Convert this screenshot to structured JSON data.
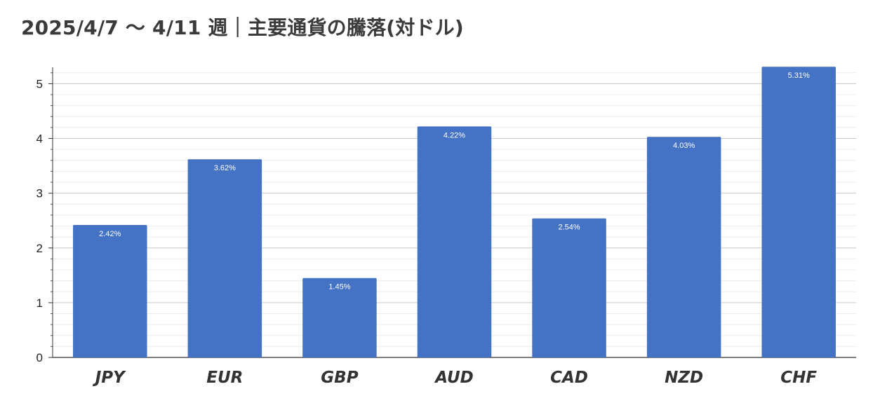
{
  "chart_data": {
    "type": "bar",
    "title": "2025/4/7 〜 4/11 週｜主要通貨の騰落(対ドル)",
    "categories": [
      "JPY",
      "EUR",
      "GBP",
      "AUD",
      "CAD",
      "NZD",
      "CHF"
    ],
    "series": [
      {
        "values": [
          2.42,
          3.62,
          1.45,
          4.22,
          2.54,
          4.03,
          5.31
        ],
        "data_labels": [
          "2.42%",
          "3.62%",
          "1.45%",
          "4.22%",
          "2.54%",
          "4.03%",
          "5.31%"
        ],
        "color": "#4472c4"
      }
    ],
    "xlabel": "",
    "ylabel": "",
    "ylim": [
      0,
      5.3
    ],
    "yticks": [
      0,
      1,
      2,
      3,
      4,
      5
    ],
    "grid": true,
    "legend": "none"
  }
}
